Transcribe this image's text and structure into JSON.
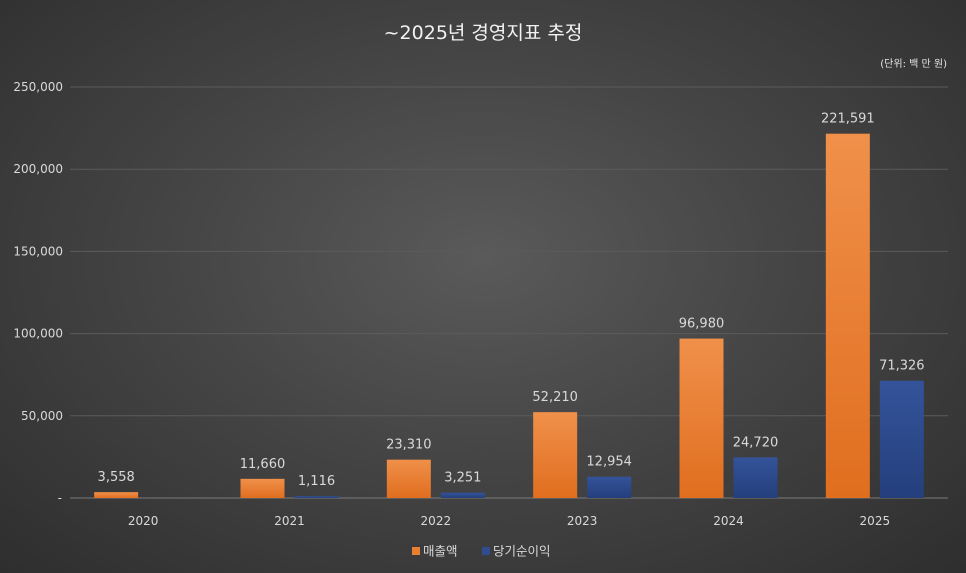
{
  "chart_data": {
    "type": "bar",
    "title": "~2025년 경영지표 추정",
    "unit_note": "(단위: 백 만 원)",
    "categories": [
      "2020",
      "2021",
      "2022",
      "2023",
      "2024",
      "2025"
    ],
    "series": [
      {
        "name": "매출액",
        "color": "#ed7d31",
        "values": [
          3558,
          11660,
          23310,
          52210,
          96980,
          221591
        ],
        "labels": [
          "3,558",
          "11,660",
          "23,310",
          "52,210",
          "96,980",
          "221,591"
        ]
      },
      {
        "name": "당기순이익",
        "color": "#2f4c8f",
        "values": [
          null,
          1116,
          3251,
          12954,
          24720,
          71326
        ],
        "labels": [
          "",
          "1,116",
          "3,251",
          "12,954",
          "24,720",
          "71,326"
        ]
      }
    ],
    "yticks": [
      "-",
      "50,000",
      "100,000",
      "150,000",
      "200,000",
      "250,000"
    ],
    "ylim": [
      0,
      250000
    ],
    "grid": true,
    "legend_position": "bottom"
  }
}
